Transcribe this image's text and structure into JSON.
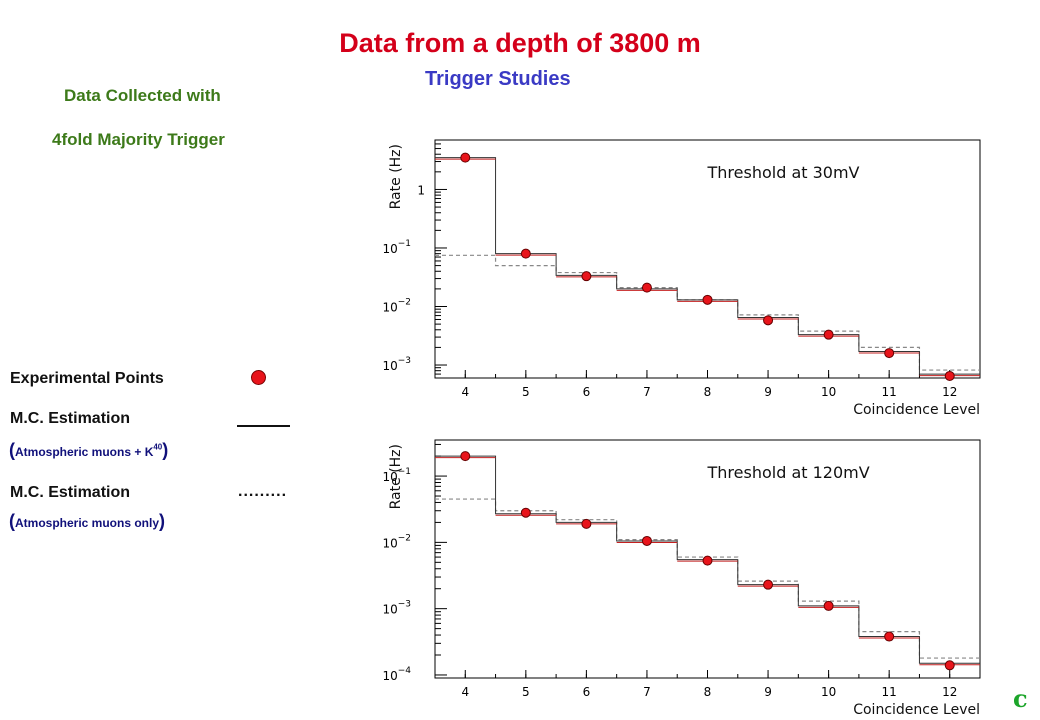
{
  "title": "Data from a depth of 3800 m",
  "subtitle": "Trigger Studies",
  "notes": [
    "Data Collected with",
    "4fold Majority  Trigger"
  ],
  "legend": {
    "experimental": "Experimental Points",
    "mc1_label": "M.C. Estimation",
    "mc1_paren_open": "(",
    "mc1_sub_text": "Atmospheric muons + K",
    "mc1_sup": "40",
    "mc1_paren_close": ")",
    "mc2_label": "M.C. Estimation",
    "mc2_marker": ".........",
    "mc2_paren_open": "(",
    "mc2_sub": "Atmospheric muons only",
    "mc2_paren_close": ")"
  },
  "corner_label": "c",
  "colors": {
    "title": "#d4001a",
    "subtitle": "#3a3ac4",
    "notes": "#3d7a1a",
    "points": "#e8141b",
    "mc_full": "#c42020",
    "mc_muons": "#888888",
    "corner": "#1ca52a"
  },
  "chart_data": [
    {
      "type": "scatter",
      "annotation": "Threshold at 30mV",
      "xlabel": "Coincidence Level",
      "ylabel": "Rate (Hz)",
      "log_y": true,
      "ylim": [
        0.0006,
        7
      ],
      "xlim": [
        3.5,
        12.5
      ],
      "x_ticks": [
        4,
        5,
        6,
        7,
        8,
        9,
        10,
        11,
        12
      ],
      "y_ticks": [
        {
          "value": 1,
          "label": "1",
          "exp": ""
        },
        {
          "value": 0.1,
          "label": "10",
          "exp": "−1"
        },
        {
          "value": 0.01,
          "label": "10",
          "exp": "−2"
        },
        {
          "value": 0.001,
          "label": "10",
          "exp": "−3"
        }
      ],
      "x": [
        4,
        5,
        6,
        7,
        8,
        9,
        10,
        11,
        12
      ],
      "series": [
        {
          "kind": "points",
          "values": [
            3.5,
            0.08,
            0.033,
            0.021,
            0.013,
            0.0058,
            0.0033,
            0.0016,
            0.00065
          ]
        },
        {
          "kind": "mc_full",
          "values": [
            3.5,
            0.08,
            0.034,
            0.02,
            0.013,
            0.0065,
            0.0033,
            0.0017,
            0.0007
          ]
        },
        {
          "kind": "mc_muons",
          "values": [
            0.075,
            0.05,
            0.038,
            0.021,
            0.013,
            0.0072,
            0.0038,
            0.002,
            0.00082
          ]
        }
      ]
    },
    {
      "type": "scatter",
      "annotation": "Threshold at 120mV",
      "xlabel": "Coincidence Level",
      "ylabel": "Rate (Hz)",
      "log_y": true,
      "ylim": [
        9e-05,
        0.35
      ],
      "xlim": [
        3.5,
        12.5
      ],
      "x_ticks": [
        4,
        5,
        6,
        7,
        8,
        9,
        10,
        11,
        12
      ],
      "y_ticks": [
        {
          "value": 0.1,
          "label": "10",
          "exp": "−1"
        },
        {
          "value": 0.01,
          "label": "10",
          "exp": "−2"
        },
        {
          "value": 0.001,
          "label": "10",
          "exp": "−3"
        },
        {
          "value": 0.0001,
          "label": "10",
          "exp": "−4"
        }
      ],
      "x": [
        4,
        5,
        6,
        7,
        8,
        9,
        10,
        11,
        12
      ],
      "series": [
        {
          "kind": "points",
          "values": [
            0.2,
            0.028,
            0.019,
            0.0105,
            0.0053,
            0.0023,
            0.0011,
            0.00038,
            0.00014
          ]
        },
        {
          "kind": "mc_full",
          "values": [
            0.2,
            0.027,
            0.02,
            0.0105,
            0.0055,
            0.0023,
            0.0011,
            0.00038,
            0.00015
          ]
        },
        {
          "kind": "mc_muons",
          "values": [
            0.045,
            0.03,
            0.022,
            0.011,
            0.006,
            0.0026,
            0.0013,
            0.00045,
            0.00018
          ]
        }
      ]
    }
  ]
}
